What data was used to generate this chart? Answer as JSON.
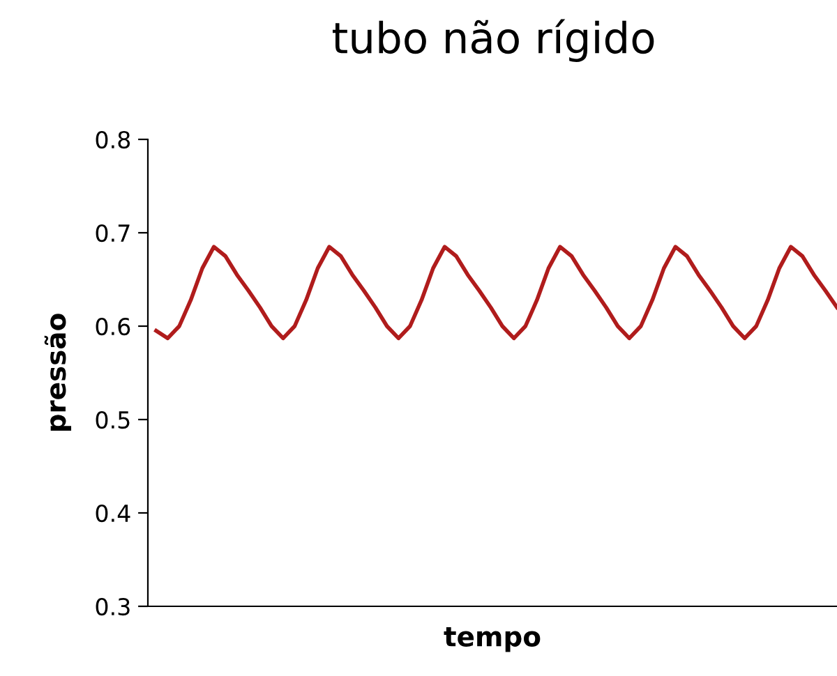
{
  "chart_data": {
    "type": "line",
    "title": "tubo não rígido",
    "xlabel": "tempo",
    "ylabel": "pressão",
    "categories": [
      null,
      null,
      null,
      null,
      null,
      null,
      null,
      null,
      null,
      null,
      null,
      null,
      null,
      null,
      null,
      null,
      null,
      null,
      null,
      null,
      null,
      null,
      null,
      null,
      null,
      null,
      null,
      null,
      null,
      null,
      null,
      null,
      null,
      null,
      null,
      null,
      null,
      null,
      null,
      null,
      null,
      null,
      null,
      null,
      null,
      null,
      null,
      null,
      null,
      null,
      null,
      null,
      null,
      null,
      null,
      null,
      null,
      null,
      null,
      null
    ],
    "series": [
      {
        "color": "#b01c1c",
        "values": [
          0.595,
          0.587,
          0.6,
          0.628,
          0.662,
          0.685,
          0.675,
          0.655,
          0.638,
          0.62,
          0.6,
          0.587,
          0.6,
          0.628,
          0.662,
          0.685,
          0.675,
          0.655,
          0.638,
          0.62,
          0.6,
          0.587,
          0.6,
          0.628,
          0.662,
          0.685,
          0.675,
          0.655,
          0.638,
          0.62,
          0.6,
          0.587,
          0.6,
          0.628,
          0.662,
          0.685,
          0.675,
          0.655,
          0.638,
          0.62,
          0.6,
          0.587,
          0.6,
          0.628,
          0.662,
          0.685,
          0.675,
          0.655,
          0.638,
          0.62,
          0.6,
          0.587,
          0.6,
          0.628,
          0.662,
          0.685,
          0.675,
          0.655,
          0.638,
          0.62
        ]
      }
    ],
    "ylim": [
      0.3,
      0.8
    ],
    "yticks": [
      0.3,
      0.4,
      0.5,
      0.6,
      0.7,
      0.8
    ],
    "tick_labels": "y",
    "grid": false,
    "marker": "none",
    "line_style": "solid"
  }
}
